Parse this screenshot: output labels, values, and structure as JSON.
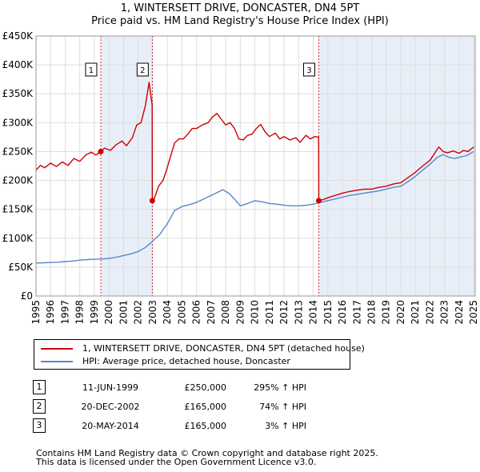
{
  "title": {
    "line1": "1, WINTERSETT DRIVE, DONCASTER, DN4 5PT",
    "line2": "Price paid vs. HM Land Registry's House Price Index (HPI)"
  },
  "legend": {
    "items": [
      {
        "label": "1, WINTERSETT DRIVE, DONCASTER, DN4 5PT (detached house)",
        "color": "#cc0000"
      },
      {
        "label": "HPI: Average price, detached house, Doncaster",
        "color": "#5588cc"
      }
    ]
  },
  "sales_table": [
    {
      "num": "1",
      "date": "11-JUN-1999",
      "price": "£250,000",
      "hpi": "295% ↑ HPI"
    },
    {
      "num": "2",
      "date": "20-DEC-2002",
      "price": "£165,000",
      "hpi": "74% ↑ HPI"
    },
    {
      "num": "3",
      "date": "20-MAY-2014",
      "price": "£165,000",
      "hpi": "3% ↑ HPI"
    }
  ],
  "footer": {
    "line1": "Contains HM Land Registry data © Crown copyright and database right 2025.",
    "line2": "This data is licensed under the Open Government Licence v3.0."
  },
  "chart_data": {
    "type": "line",
    "title": "Price paid vs. HM Land Registry's House Price Index (HPI)",
    "xlim": [
      1995,
      2025.1
    ],
    "ylim": [
      0,
      450000
    ],
    "x_ticks": [
      1995,
      1996,
      1997,
      1998,
      1999,
      2000,
      2001,
      2002,
      2003,
      2004,
      2005,
      2006,
      2007,
      2008,
      2009,
      2010,
      2011,
      2012,
      2013,
      2014,
      2015,
      2016,
      2017,
      2018,
      2019,
      2020,
      2021,
      2022,
      2023,
      2024,
      2025
    ],
    "x_tick_labels": [
      "1995",
      "1996",
      "1997",
      "1998",
      "1999",
      "2000",
      "2001",
      "2002",
      "2003",
      "2004",
      "2005",
      "2006",
      "2007",
      "2008",
      "2009",
      "2010",
      "2011",
      "2012",
      "2013",
      "2014",
      "2015",
      "2016",
      "2017",
      "2018",
      "2019",
      "2020",
      "2021",
      "2022",
      "2023",
      "2024",
      "2025"
    ],
    "y_ticks": [
      0,
      50000,
      100000,
      150000,
      200000,
      250000,
      300000,
      350000,
      400000,
      450000
    ],
    "y_tick_labels": [
      "£0",
      "£50K",
      "£100K",
      "£150K",
      "£200K",
      "£250K",
      "£300K",
      "£350K",
      "£400K",
      "£450K"
    ],
    "colors": {
      "property": "#cc0000",
      "hpi": "#5588cc",
      "shade": "#e8eef8",
      "grid": "#dddddd"
    },
    "shaded_ranges": [
      [
        1999.44,
        2002.97
      ],
      [
        2014.38,
        2025.1
      ]
    ],
    "sale_markers": [
      {
        "label": "1",
        "x": 1999.44,
        "y": 250000
      },
      {
        "label": "2",
        "x": 2002.97,
        "y": 165000
      },
      {
        "label": "3",
        "x": 2014.38,
        "y": 165000
      }
    ],
    "series": [
      {
        "name": "1, WINTERSETT DRIVE, DONCASTER, DN4 5PT (detached house)",
        "color": "#cc0000",
        "points": [
          [
            1995.0,
            218000
          ],
          [
            1995.3,
            226000
          ],
          [
            1995.6,
            222000
          ],
          [
            1996.0,
            230000
          ],
          [
            1996.4,
            224000
          ],
          [
            1996.8,
            232000
          ],
          [
            1997.2,
            226000
          ],
          [
            1997.6,
            238000
          ],
          [
            1998.0,
            233000
          ],
          [
            1998.4,
            244000
          ],
          [
            1998.8,
            249000
          ],
          [
            1999.1,
            244000
          ],
          [
            1999.44,
            250000
          ],
          [
            1999.7,
            256000
          ],
          [
            2000.1,
            252000
          ],
          [
            2000.5,
            262000
          ],
          [
            2000.9,
            268000
          ],
          [
            2001.2,
            260000
          ],
          [
            2001.6,
            274000
          ],
          [
            2001.9,
            296000
          ],
          [
            2002.2,
            300000
          ],
          [
            2002.5,
            330000
          ],
          [
            2002.75,
            370000
          ],
          [
            2002.96,
            330000
          ],
          [
            2002.97,
            165000
          ],
          [
            2003.1,
            168000
          ],
          [
            2003.4,
            190000
          ],
          [
            2003.7,
            200000
          ],
          [
            2003.9,
            214000
          ],
          [
            2004.2,
            240000
          ],
          [
            2004.5,
            265000
          ],
          [
            2004.8,
            272000
          ],
          [
            2005.1,
            272000
          ],
          [
            2005.4,
            280000
          ],
          [
            2005.7,
            290000
          ],
          [
            2006.0,
            290000
          ],
          [
            2006.4,
            296000
          ],
          [
            2006.8,
            300000
          ],
          [
            2007.1,
            310000
          ],
          [
            2007.4,
            316000
          ],
          [
            2007.7,
            306000
          ],
          [
            2008.0,
            296000
          ],
          [
            2008.3,
            300000
          ],
          [
            2008.6,
            290000
          ],
          [
            2008.9,
            272000
          ],
          [
            2009.2,
            270000
          ],
          [
            2009.5,
            278000
          ],
          [
            2009.8,
            280000
          ],
          [
            2010.1,
            290000
          ],
          [
            2010.4,
            297000
          ],
          [
            2010.7,
            284000
          ],
          [
            2011.0,
            276000
          ],
          [
            2011.4,
            282000
          ],
          [
            2011.7,
            272000
          ],
          [
            2012.0,
            276000
          ],
          [
            2012.4,
            270000
          ],
          [
            2012.8,
            274000
          ],
          [
            2013.1,
            266000
          ],
          [
            2013.5,
            278000
          ],
          [
            2013.8,
            272000
          ],
          [
            2014.1,
            276000
          ],
          [
            2014.37,
            275000
          ],
          [
            2014.38,
            165000
          ],
          [
            2014.7,
            167000
          ],
          [
            2015.0,
            170000
          ],
          [
            2015.5,
            174000
          ],
          [
            2016.0,
            178000
          ],
          [
            2016.5,
            181000
          ],
          [
            2017.0,
            183000
          ],
          [
            2017.5,
            185000
          ],
          [
            2018.0,
            185000
          ],
          [
            2018.5,
            188000
          ],
          [
            2019.0,
            190000
          ],
          [
            2019.5,
            194000
          ],
          [
            2020.0,
            196000
          ],
          [
            2020.5,
            205000
          ],
          [
            2021.0,
            214000
          ],
          [
            2021.5,
            225000
          ],
          [
            2022.0,
            235000
          ],
          [
            2022.3,
            246000
          ],
          [
            2022.6,
            258000
          ],
          [
            2022.9,
            250000
          ],
          [
            2023.2,
            248000
          ],
          [
            2023.6,
            251000
          ],
          [
            2024.0,
            247000
          ],
          [
            2024.3,
            252000
          ],
          [
            2024.6,
            250000
          ],
          [
            2025.0,
            258000
          ]
        ]
      },
      {
        "name": "HPI: Average price, detached house, Doncaster",
        "color": "#5588cc",
        "points": [
          [
            1995.0,
            57000
          ],
          [
            1995.5,
            57500
          ],
          [
            1996.0,
            58000
          ],
          [
            1996.5,
            58500
          ],
          [
            1997.0,
            59500
          ],
          [
            1997.5,
            60500
          ],
          [
            1998.0,
            62000
          ],
          [
            1998.5,
            63000
          ],
          [
            1999.0,
            63500
          ],
          [
            1999.5,
            64000
          ],
          [
            2000.0,
            65000
          ],
          [
            2000.5,
            67000
          ],
          [
            2001.0,
            70000
          ],
          [
            2001.5,
            73000
          ],
          [
            2002.0,
            77000
          ],
          [
            2002.5,
            84000
          ],
          [
            2003.0,
            95000
          ],
          [
            2003.5,
            107000
          ],
          [
            2004.0,
            125000
          ],
          [
            2004.5,
            148000
          ],
          [
            2005.0,
            155000
          ],
          [
            2005.5,
            158000
          ],
          [
            2006.0,
            162000
          ],
          [
            2006.5,
            168000
          ],
          [
            2007.0,
            174000
          ],
          [
            2007.5,
            180000
          ],
          [
            2007.8,
            184000
          ],
          [
            2008.2,
            178000
          ],
          [
            2008.6,
            168000
          ],
          [
            2009.0,
            156000
          ],
          [
            2009.5,
            160000
          ],
          [
            2010.0,
            165000
          ],
          [
            2010.5,
            163000
          ],
          [
            2011.0,
            160000
          ],
          [
            2011.5,
            159000
          ],
          [
            2012.0,
            157000
          ],
          [
            2012.5,
            156000
          ],
          [
            2013.0,
            156000
          ],
          [
            2013.5,
            157000
          ],
          [
            2014.0,
            159000
          ],
          [
            2014.5,
            162000
          ],
          [
            2015.0,
            165000
          ],
          [
            2015.5,
            168000
          ],
          [
            2016.0,
            171000
          ],
          [
            2016.5,
            174000
          ],
          [
            2017.0,
            176000
          ],
          [
            2017.5,
            178000
          ],
          [
            2018.0,
            180000
          ],
          [
            2018.5,
            182000
          ],
          [
            2019.0,
            185000
          ],
          [
            2019.5,
            188000
          ],
          [
            2020.0,
            190000
          ],
          [
            2020.5,
            198000
          ],
          [
            2021.0,
            207000
          ],
          [
            2021.5,
            218000
          ],
          [
            2022.0,
            228000
          ],
          [
            2022.5,
            240000
          ],
          [
            2022.9,
            245000
          ],
          [
            2023.3,
            240000
          ],
          [
            2023.7,
            238000
          ],
          [
            2024.0,
            240000
          ],
          [
            2024.5,
            243000
          ],
          [
            2025.0,
            250000
          ]
        ]
      }
    ]
  }
}
